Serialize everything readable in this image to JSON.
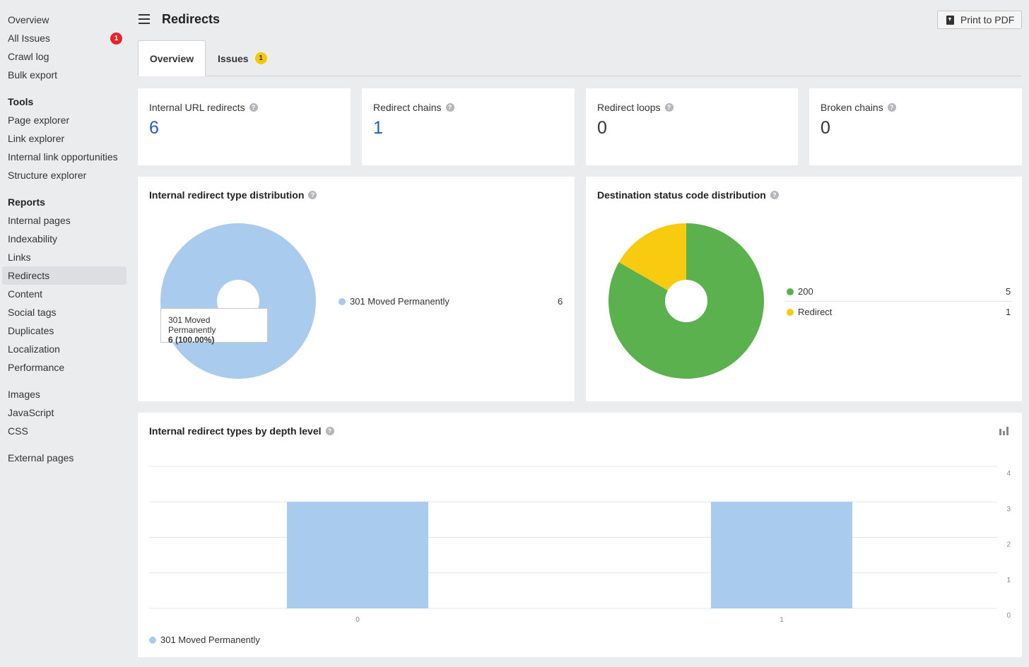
{
  "sidebar": {
    "top_items": [
      {
        "label": "Overview"
      },
      {
        "label": "All Issues",
        "badge": "1"
      },
      {
        "label": "Crawl log"
      },
      {
        "label": "Bulk export"
      }
    ],
    "tools_heading": "Tools",
    "tools": [
      {
        "label": "Page explorer"
      },
      {
        "label": "Link explorer"
      },
      {
        "label": "Internal link opportunities"
      },
      {
        "label": "Structure explorer"
      }
    ],
    "reports_heading": "Reports",
    "reports": [
      {
        "label": "Internal pages"
      },
      {
        "label": "Indexability"
      },
      {
        "label": "Links"
      },
      {
        "label": "Redirects",
        "active": true
      },
      {
        "label": "Content"
      },
      {
        "label": "Social tags"
      },
      {
        "label": "Duplicates"
      },
      {
        "label": "Localization"
      },
      {
        "label": "Performance"
      }
    ],
    "resources": [
      {
        "label": "Images"
      },
      {
        "label": "JavaScript"
      },
      {
        "label": "CSS"
      }
    ],
    "external": [
      {
        "label": "External pages"
      }
    ]
  },
  "header": {
    "title": "Redirects",
    "print_label": "Print to PDF"
  },
  "tabs": [
    {
      "label": "Overview",
      "active": true
    },
    {
      "label": "Issues",
      "badge": "1"
    }
  ],
  "stats": [
    {
      "label": "Internal URL redirects",
      "value": "6"
    },
    {
      "label": "Redirect chains",
      "value": "1"
    },
    {
      "label": "Redirect loops",
      "value": "0"
    },
    {
      "label": "Broken chains",
      "value": "0"
    }
  ],
  "colors": {
    "blue_series": "#a8cbee",
    "green": "#5ab14d",
    "yellow": "#f9cb10",
    "link": "#1e5fb4"
  },
  "chart_data": [
    {
      "type": "pie",
      "title": "Internal redirect type distribution",
      "slices": [
        {
          "label": "301 Moved Permanently",
          "value": 6
        }
      ],
      "tooltip": {
        "label": "301 Moved Permanently",
        "value": "6 (100.00%)"
      }
    },
    {
      "type": "pie",
      "title": "Destination status code distribution",
      "slices": [
        {
          "label": "200",
          "value": 5
        },
        {
          "label": "Redirect",
          "value": 1
        }
      ]
    },
    {
      "type": "bar",
      "title": "Internal redirect types by depth level",
      "categories": [
        "0",
        "1"
      ],
      "series": [
        {
          "name": "301 Moved Permanently",
          "values": [
            3,
            3
          ]
        }
      ],
      "yticks": [
        "0",
        "1",
        "2",
        "3",
        "4"
      ],
      "ylim": [
        0,
        4
      ]
    }
  ]
}
